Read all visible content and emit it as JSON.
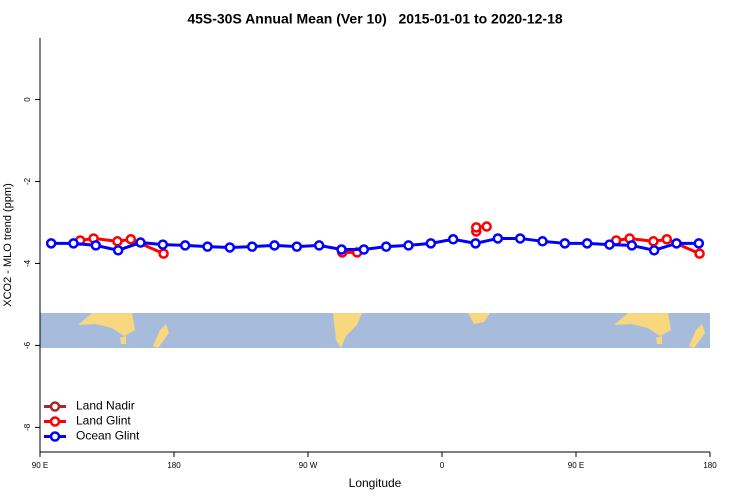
{
  "chart_data": {
    "type": "line",
    "title": "45S-30S Annual Mean (Ver 10)   2015-01-01 to 2020-12-18",
    "x_label": "Longitude",
    "y_label": "XCO2 - MLO trend (ppm)",
    "xlim": [
      90,
      540
    ],
    "ylim": [
      -8.6,
      1.5
    ],
    "xticks": [
      {
        "value": 90,
        "label": "90 E"
      },
      180,
      {
        "value": 270,
        "label": "90 W"
      },
      {
        "value": 360,
        "label": "0"
      },
      {
        "value": 450,
        "label": "90 E"
      },
      {
        "value": 540,
        "label": "180"
      }
    ],
    "yticks": [
      -8,
      -6,
      -4,
      -2,
      0
    ],
    "legend": "bottomleft",
    "grid": false,
    "series": [
      {
        "name": "Land Nadir",
        "color": "#a52a2a",
        "x": [],
        "values": []
      },
      {
        "name": "Land Glint",
        "color": "#ff0000",
        "x": [
          117,
          126,
          142,
          151,
          173,
          null,
          293,
          303,
          null,
          383,
          null,
          383,
          390,
          null,
          477,
          486,
          502,
          511,
          533
        ],
        "values": [
          -3.44,
          -3.39,
          -3.46,
          -3.41,
          -3.76,
          null,
          -3.73,
          -3.73,
          null,
          -3.22,
          null,
          -3.12,
          -3.1,
          null,
          -3.44,
          -3.39,
          -3.46,
          -3.41,
          -3.76
        ]
      },
      {
        "name": "Ocean Glint",
        "color": "#0000ff",
        "x": [
          97.5,
          112.5,
          127.5,
          142.5,
          157.5,
          172.5,
          187.5,
          202.5,
          217.5,
          232.5,
          247.5,
          262.5,
          277.5,
          292.5,
          307.5,
          322.5,
          337.5,
          352.5,
          367.5,
          382.5,
          397.5,
          412.5,
          427.5,
          442.5,
          457.5,
          472.5,
          487.5,
          502.5,
          517.5,
          532.5
        ],
        "values": [
          -3.51,
          -3.51,
          -3.56,
          -3.68,
          -3.49,
          -3.54,
          -3.56,
          -3.59,
          -3.61,
          -3.59,
          -3.56,
          -3.59,
          -3.56,
          -3.66,
          -3.66,
          -3.59,
          -3.56,
          -3.51,
          -3.41,
          -3.51,
          -3.39,
          -3.39,
          -3.46,
          -3.51,
          -3.51,
          -3.54,
          -3.56,
          -3.68,
          -3.51,
          -3.51
        ]
      }
    ]
  }
}
